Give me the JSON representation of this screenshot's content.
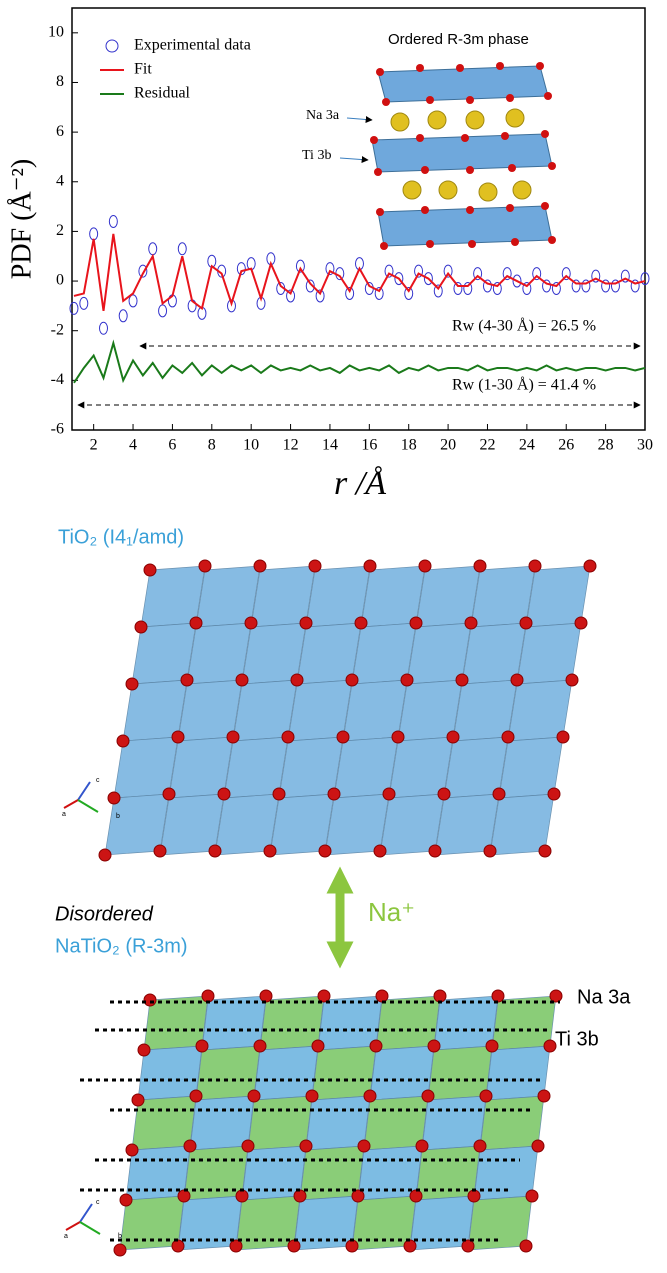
{
  "chart_data": {
    "type": "line",
    "x_label": "r /Å",
    "y_label": "PDF (Å⁻²)",
    "x": [
      1,
      1.5,
      2,
      2.5,
      3,
      3.5,
      4,
      4.5,
      5,
      5.5,
      6,
      6.5,
      7,
      7.5,
      8,
      8.5,
      9,
      9.5,
      10,
      10.5,
      11,
      11.5,
      12,
      12.5,
      13,
      13.5,
      14,
      14.5,
      15,
      15.5,
      16,
      16.5,
      17,
      17.5,
      18,
      18.5,
      19,
      19.5,
      20,
      20.5,
      21,
      21.5,
      22,
      22.5,
      23,
      23.5,
      24,
      24.5,
      25,
      25.5,
      26,
      26.5,
      27,
      27.5,
      28,
      28.5,
      29,
      29.5,
      30
    ],
    "series": [
      {
        "name": "Experimental data",
        "color": "#3333cc",
        "values": [
          -1.1,
          -0.9,
          1.9,
          -1.9,
          2.4,
          -1.4,
          -0.8,
          0.4,
          1.3,
          -1.2,
          -0.8,
          1.3,
          -1.0,
          -1.3,
          0.8,
          0.4,
          -1.0,
          0.5,
          0.7,
          -0.9,
          0.9,
          -0.3,
          -0.6,
          0.6,
          -0.2,
          -0.6,
          0.5,
          0.3,
          -0.5,
          0.7,
          -0.3,
          -0.5,
          0.4,
          0.1,
          -0.5,
          0.4,
          0.1,
          -0.4,
          0.4,
          -0.3,
          -0.3,
          0.3,
          -0.2,
          -0.3,
          0.3,
          0.0,
          -0.3,
          0.3,
          -0.2,
          -0.3,
          0.3,
          -0.2,
          -0.2,
          0.2,
          -0.2,
          -0.2,
          0.2,
          -0.2,
          0.1
        ]
      },
      {
        "name": "Fit",
        "color": "#e8141c",
        "values": [
          -0.6,
          -0.5,
          1.7,
          -1.2,
          1.9,
          -0.8,
          -0.5,
          0.3,
          1.0,
          -0.9,
          -0.6,
          1.0,
          -0.8,
          -1.1,
          0.6,
          0.3,
          -0.9,
          0.4,
          0.5,
          -0.7,
          0.7,
          -0.2,
          -0.5,
          0.5,
          -0.1,
          -0.5,
          0.4,
          0.2,
          -0.4,
          0.5,
          -0.2,
          -0.4,
          0.3,
          0.1,
          -0.4,
          0.3,
          0.1,
          -0.3,
          0.3,
          -0.2,
          -0.2,
          0.2,
          -0.1,
          -0.2,
          0.2,
          0.0,
          -0.2,
          0.2,
          -0.1,
          -0.2,
          0.2,
          -0.1,
          -0.1,
          0.1,
          -0.1,
          -0.1,
          0.1,
          -0.1,
          0.0
        ]
      },
      {
        "name": "Residual",
        "color": "#1a7a1a",
        "values": [
          -4.1,
          -3.5,
          -3.0,
          -3.9,
          -2.5,
          -4.0,
          -3.2,
          -3.8,
          -3.3,
          -3.9,
          -3.4,
          -3.7,
          -3.3,
          -3.8,
          -3.4,
          -3.7,
          -3.4,
          -3.6,
          -3.4,
          -3.7,
          -3.4,
          -3.6,
          -3.5,
          -3.6,
          -3.4,
          -3.6,
          -3.5,
          -3.7,
          -3.4,
          -3.6,
          -3.5,
          -3.6,
          -3.4,
          -3.7,
          -3.5,
          -3.6,
          -3.4,
          -3.6,
          -3.5,
          -3.5,
          -3.6,
          -3.4,
          -3.6,
          -3.5,
          -3.5,
          -3.6,
          -3.5,
          -3.6,
          -3.4,
          -3.6,
          -3.5,
          -3.6,
          -3.5,
          -3.5,
          -3.6,
          -3.5,
          -3.5,
          -3.6,
          -3.5
        ]
      }
    ],
    "xlim": [
      0.9,
      30
    ],
    "ylim": [
      -6,
      11
    ],
    "xticks": [
      2,
      4,
      6,
      8,
      10,
      12,
      14,
      16,
      18,
      20,
      22,
      24,
      26,
      28,
      30
    ],
    "yticks": [
      -6,
      -4,
      -2,
      0,
      2,
      4,
      6,
      8,
      10
    ],
    "legend": "upper left",
    "annotations": {
      "phase": "Ordered R-3m phase",
      "na": "Na 3a",
      "ti": "Ti 3b",
      "rw1": "Rw (4-30 Å) = 26.5 %",
      "rw2": "Rw (1-30 Å) = 41.4 %"
    }
  },
  "figure": {
    "tio2": "TiO₂ (I4₁/amd)",
    "disordered": "Disordered",
    "natio2": "NaTiO₂ (R-3m)",
    "ion": "Na⁺",
    "na": "Na 3a",
    "ti": "Ti 3b",
    "axes": [
      "a",
      "b",
      "c"
    ]
  }
}
